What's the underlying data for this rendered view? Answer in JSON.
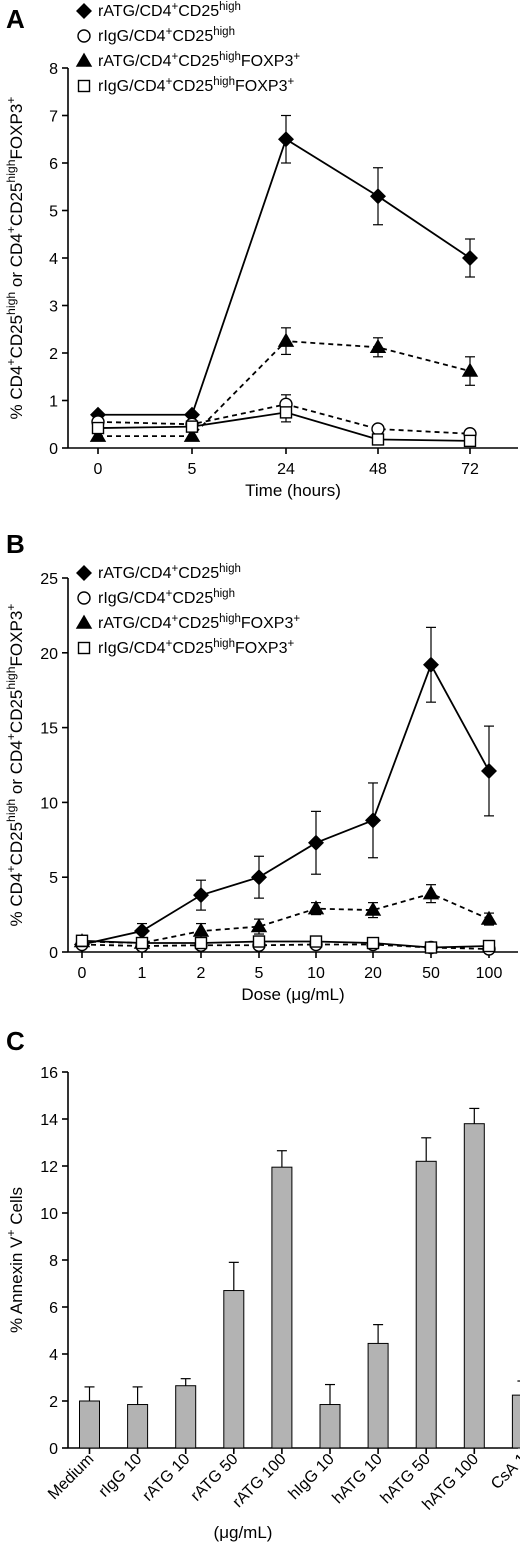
{
  "panels": [
    {
      "letter": "A"
    },
    {
      "letter": "B"
    },
    {
      "letter": "C"
    }
  ],
  "chart_data": [
    {
      "type": "line",
      "panel": "A",
      "categories": [
        "0",
        "5",
        "24",
        "48",
        "72"
      ],
      "xlabel": "Time (hours)",
      "ylabel": "% CD4+CD25high or CD4+CD25highFOXP3+",
      "ylim": [
        0,
        8
      ],
      "yticks": [
        0,
        1,
        2,
        3,
        4,
        5,
        6,
        7,
        8
      ],
      "legend_position": "top-left",
      "series": [
        {
          "name": "rATG/CD4+CD25high",
          "marker": "diamond",
          "fill": "black",
          "line": "solid",
          "values": [
            0.7,
            0.7,
            6.5,
            5.3,
            4.0
          ],
          "errors": [
            0,
            0,
            0.5,
            0.6,
            0.4
          ]
        },
        {
          "name": "rIgG/CD4+CD25high",
          "marker": "circle",
          "fill": "white",
          "line": "dashed",
          "values": [
            0.55,
            0.5,
            0.92,
            0.4,
            0.3
          ],
          "errors": [
            0,
            0,
            0.2,
            0,
            0
          ]
        },
        {
          "name": "rATG/CD4+CD25highFOXP3+",
          "marker": "triangle",
          "fill": "black",
          "line": "dashed",
          "values": [
            0.25,
            0.25,
            2.25,
            2.12,
            1.62
          ],
          "errors": [
            0,
            0,
            0.28,
            0.2,
            0.3
          ]
        },
        {
          "name": "rIgG/CD4+CD25highFOXP3+",
          "marker": "square",
          "fill": "white",
          "line": "solid",
          "values": [
            0.42,
            0.45,
            0.75,
            0.18,
            0.15
          ],
          "errors": [
            0,
            0,
            0.2,
            0,
            0
          ]
        }
      ]
    },
    {
      "type": "line",
      "panel": "B",
      "categories": [
        "0",
        "1",
        "2",
        "5",
        "10",
        "20",
        "50",
        "100"
      ],
      "xlabel": "Dose (μg/mL)",
      "ylabel": "% CD4+CD25high or CD4+CD25highFOXP3+",
      "ylim": [
        0,
        25
      ],
      "yticks": [
        0,
        5,
        10,
        15,
        20,
        25
      ],
      "legend_position": "top-left",
      "series": [
        {
          "name": "rATG/CD4+CD25high",
          "marker": "diamond",
          "fill": "black",
          "line": "solid",
          "values": [
            0.5,
            1.4,
            3.8,
            5.0,
            7.3,
            8.8,
            19.2,
            12.1
          ],
          "errors": [
            0,
            0.5,
            1.0,
            1.4,
            2.1,
            2.5,
            2.5,
            3.0
          ]
        },
        {
          "name": "rIgG/CD4+CD25high",
          "marker": "circle",
          "fill": "white",
          "line": "dashed",
          "values": [
            0.5,
            0.4,
            0.45,
            0.45,
            0.5,
            0.5,
            0.3,
            0.2
          ],
          "errors": [
            0,
            0,
            0,
            0,
            0,
            0,
            0,
            0
          ]
        },
        {
          "name": "rATG/CD4+CD25highFOXP3+",
          "marker": "triangle",
          "fill": "black",
          "line": "dashed",
          "values": [
            0.7,
            0.6,
            1.4,
            1.7,
            2.9,
            2.8,
            3.9,
            2.2
          ],
          "errors": [
            0,
            0,
            0.5,
            0.5,
            0.4,
            0.5,
            0.6,
            0.4
          ]
        },
        {
          "name": "rIgG/CD4+CD25highFOXP3+",
          "marker": "square",
          "fill": "white",
          "line": "solid",
          "values": [
            0.75,
            0.6,
            0.6,
            0.7,
            0.7,
            0.6,
            0.3,
            0.4
          ],
          "errors": [
            0,
            0,
            0,
            0,
            0,
            0,
            0,
            0
          ]
        }
      ]
    },
    {
      "type": "bar",
      "panel": "C",
      "categories": [
        "Medium",
        "rIgG 10",
        "rATG 10",
        "rATG 50",
        "rATG 100",
        "hIgG 10",
        "hATG 10",
        "hATG 50",
        "hATG 100",
        "CsA 1"
      ],
      "values": [
        2.0,
        1.85,
        2.65,
        6.7,
        11.95,
        1.85,
        4.45,
        12.2,
        13.8,
        2.25
      ],
      "errors": [
        0.6,
        0.75,
        0.3,
        1.2,
        0.7,
        0.85,
        0.8,
        1.0,
        0.65,
        0.6
      ],
      "xlabel": "(μg/mL)",
      "ylabel": "% Annexin V+ Cells",
      "ylim": [
        0,
        16
      ],
      "yticks": [
        0,
        2,
        4,
        6,
        8,
        10,
        12,
        14,
        16
      ],
      "bar_color": "#b3b3b3"
    }
  ]
}
